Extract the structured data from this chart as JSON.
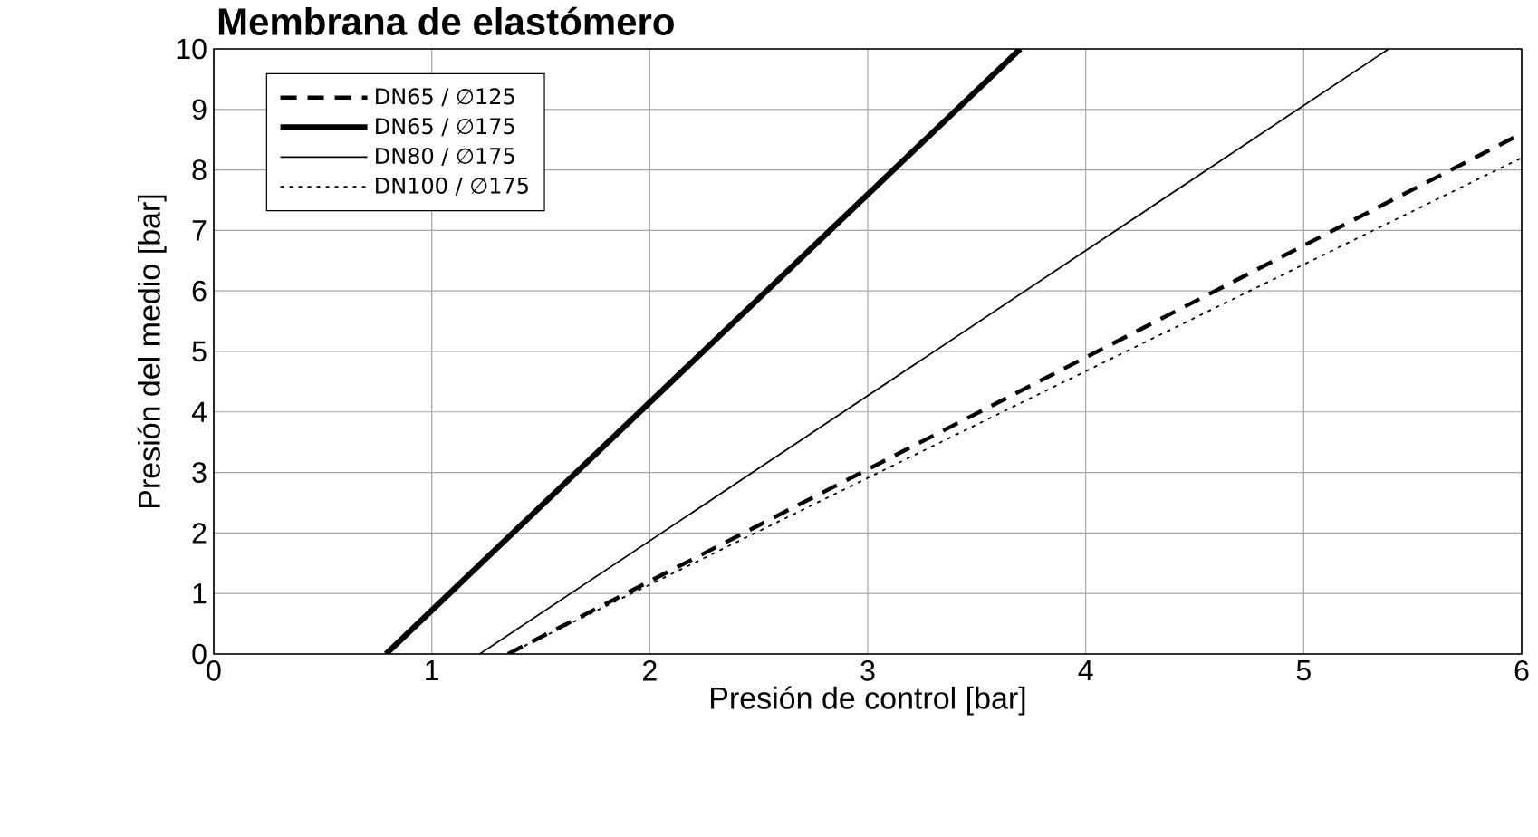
{
  "chart_data": {
    "type": "line",
    "title": "Membrana de elastómero",
    "xlabel": "Presión de control [bar]",
    "ylabel": "Presión del medio [bar]",
    "xlim": [
      0,
      6
    ],
    "ylim": [
      0,
      10
    ],
    "xticks": [
      0,
      1,
      2,
      3,
      4,
      5,
      6
    ],
    "yticks": [
      0,
      1,
      2,
      3,
      4,
      5,
      6,
      7,
      8,
      9,
      10
    ],
    "grid": true,
    "legend": "top left",
    "series": [
      {
        "name": "DN65 / ∅125",
        "color": "#000000",
        "line_style": "dashed",
        "x": [
          1.35,
          6
        ],
        "values": [
          0,
          8.6
        ]
      },
      {
        "name": "DN65 / ∅175",
        "color": "#000000",
        "line_style": "solid",
        "x": [
          0.79,
          3.7
        ],
        "values": [
          0,
          10
        ]
      },
      {
        "name": "DN80 / ∅175",
        "color": "#000000",
        "line_style": "solid",
        "x": [
          1.22,
          5.39
        ],
        "values": [
          0,
          10
        ]
      },
      {
        "name": "DN100 / ∅175",
        "color": "#000000",
        "line_style": "dotted",
        "x": [
          1.35,
          6
        ],
        "values": [
          0,
          8.2
        ]
      }
    ]
  }
}
